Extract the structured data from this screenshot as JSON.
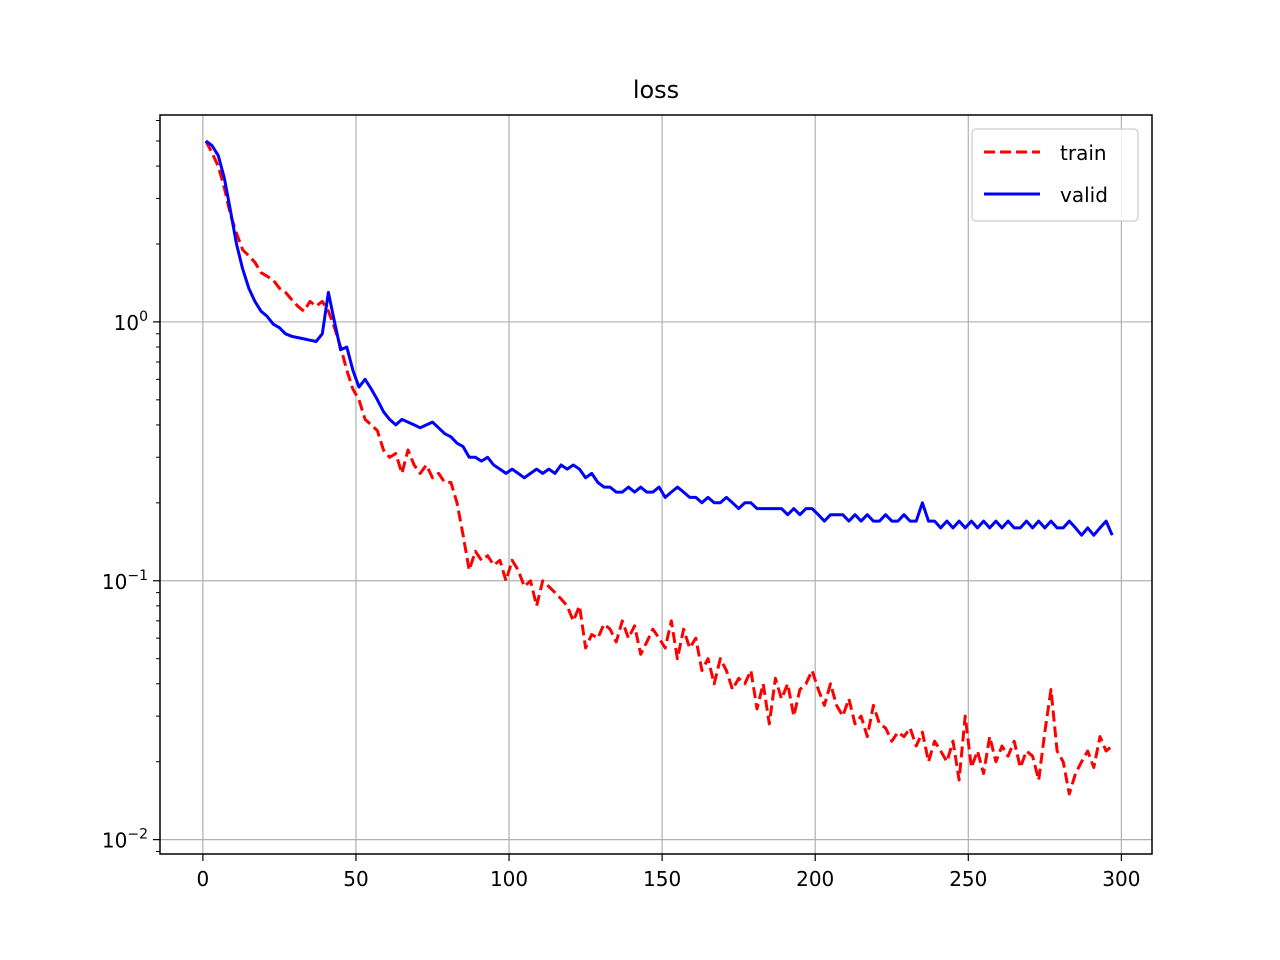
{
  "chart_data": {
    "type": "line",
    "title": "loss",
    "xlabel": "",
    "ylabel": "",
    "yscale": "log",
    "xlim": [
      -14,
      310
    ],
    "ylim": [
      0.0088,
      6.3
    ],
    "grid": true,
    "legend_position": "top-right",
    "x_ticks": [
      {
        "value": 0,
        "label": "0"
      },
      {
        "value": 50,
        "label": "50"
      },
      {
        "value": 100,
        "label": "100"
      },
      {
        "value": 150,
        "label": "150"
      },
      {
        "value": 200,
        "label": "200"
      },
      {
        "value": 250,
        "label": "250"
      },
      {
        "value": 300,
        "label": "300"
      }
    ],
    "y_ticks": [
      {
        "value": 1,
        "base": "10",
        "exp": "0"
      },
      {
        "value": 0.1,
        "base": "10",
        "exp": "−1"
      },
      {
        "value": 0.01,
        "base": "10",
        "exp": "−2"
      }
    ],
    "series": [
      {
        "name": "train",
        "color": "#ff0000",
        "dash": true,
        "points": [
          [
            1,
            5.0
          ],
          [
            3,
            4.5
          ],
          [
            5,
            4.0
          ],
          [
            7,
            3.3
          ],
          [
            9,
            2.6
          ],
          [
            11,
            2.2
          ],
          [
            13,
            1.9
          ],
          [
            15,
            1.8
          ],
          [
            17,
            1.7
          ],
          [
            19,
            1.55
          ],
          [
            21,
            1.5
          ],
          [
            23,
            1.45
          ],
          [
            25,
            1.35
          ],
          [
            27,
            1.3
          ],
          [
            29,
            1.22
          ],
          [
            31,
            1.15
          ],
          [
            33,
            1.1
          ],
          [
            35,
            1.2
          ],
          [
            37,
            1.15
          ],
          [
            39,
            1.2
          ],
          [
            41,
            1.1
          ],
          [
            43,
            0.95
          ],
          [
            45,
            0.8
          ],
          [
            47,
            0.65
          ],
          [
            49,
            0.55
          ],
          [
            51,
            0.5
          ],
          [
            53,
            0.42
          ],
          [
            55,
            0.4
          ],
          [
            57,
            0.38
          ],
          [
            59,
            0.32
          ],
          [
            61,
            0.3
          ],
          [
            63,
            0.31
          ],
          [
            65,
            0.26
          ],
          [
            67,
            0.32
          ],
          [
            69,
            0.28
          ],
          [
            71,
            0.26
          ],
          [
            73,
            0.28
          ],
          [
            75,
            0.25
          ],
          [
            77,
            0.26
          ],
          [
            79,
            0.24
          ],
          [
            81,
            0.24
          ],
          [
            83,
            0.2
          ],
          [
            85,
            0.15
          ],
          [
            87,
            0.11
          ],
          [
            89,
            0.13
          ],
          [
            91,
            0.12
          ],
          [
            93,
            0.125
          ],
          [
            95,
            0.115
          ],
          [
            97,
            0.12
          ],
          [
            99,
            0.1
          ],
          [
            101,
            0.12
          ],
          [
            103,
            0.11
          ],
          [
            105,
            0.095
          ],
          [
            107,
            0.1
          ],
          [
            109,
            0.08
          ],
          [
            111,
            0.1
          ],
          [
            113,
            0.095
          ],
          [
            115,
            0.09
          ],
          [
            117,
            0.085
          ],
          [
            119,
            0.08
          ],
          [
            121,
            0.07
          ],
          [
            123,
            0.08
          ],
          [
            125,
            0.055
          ],
          [
            127,
            0.062
          ],
          [
            129,
            0.06
          ],
          [
            131,
            0.068
          ],
          [
            133,
            0.065
          ],
          [
            135,
            0.058
          ],
          [
            137,
            0.07
          ],
          [
            139,
            0.06
          ],
          [
            141,
            0.067
          ],
          [
            143,
            0.052
          ],
          [
            145,
            0.058
          ],
          [
            147,
            0.065
          ],
          [
            149,
            0.06
          ],
          [
            151,
            0.055
          ],
          [
            153,
            0.07
          ],
          [
            155,
            0.05
          ],
          [
            157,
            0.065
          ],
          [
            159,
            0.055
          ],
          [
            161,
            0.06
          ],
          [
            163,
            0.045
          ],
          [
            165,
            0.05
          ],
          [
            167,
            0.04
          ],
          [
            169,
            0.05
          ],
          [
            171,
            0.045
          ],
          [
            173,
            0.038
          ],
          [
            175,
            0.042
          ],
          [
            177,
            0.04
          ],
          [
            179,
            0.045
          ],
          [
            181,
            0.032
          ],
          [
            183,
            0.04
          ],
          [
            185,
            0.028
          ],
          [
            187,
            0.042
          ],
          [
            189,
            0.035
          ],
          [
            191,
            0.04
          ],
          [
            193,
            0.03
          ],
          [
            195,
            0.038
          ],
          [
            197,
            0.04
          ],
          [
            199,
            0.045
          ],
          [
            201,
            0.038
          ],
          [
            203,
            0.033
          ],
          [
            205,
            0.04
          ],
          [
            207,
            0.033
          ],
          [
            209,
            0.03
          ],
          [
            211,
            0.035
          ],
          [
            213,
            0.028
          ],
          [
            215,
            0.03
          ],
          [
            217,
            0.025
          ],
          [
            219,
            0.033
          ],
          [
            221,
            0.028
          ],
          [
            223,
            0.027
          ],
          [
            225,
            0.024
          ],
          [
            227,
            0.026
          ],
          [
            229,
            0.025
          ],
          [
            231,
            0.027
          ],
          [
            233,
            0.023
          ],
          [
            235,
            0.026
          ],
          [
            237,
            0.02
          ],
          [
            239,
            0.024
          ],
          [
            241,
            0.022
          ],
          [
            243,
            0.02
          ],
          [
            245,
            0.024
          ],
          [
            247,
            0.017
          ],
          [
            249,
            0.03
          ],
          [
            251,
            0.019
          ],
          [
            253,
            0.022
          ],
          [
            255,
            0.018
          ],
          [
            257,
            0.025
          ],
          [
            259,
            0.02
          ],
          [
            261,
            0.023
          ],
          [
            263,
            0.021
          ],
          [
            265,
            0.024
          ],
          [
            267,
            0.019
          ],
          [
            269,
            0.022
          ],
          [
            271,
            0.021
          ],
          [
            273,
            0.017
          ],
          [
            275,
            0.026
          ],
          [
            277,
            0.038
          ],
          [
            279,
            0.022
          ],
          [
            281,
            0.02
          ],
          [
            283,
            0.015
          ],
          [
            285,
            0.018
          ],
          [
            287,
            0.02
          ],
          [
            289,
            0.022
          ],
          [
            291,
            0.019
          ],
          [
            293,
            0.025
          ],
          [
            295,
            0.022
          ],
          [
            297,
            0.023
          ]
        ]
      },
      {
        "name": "valid",
        "color": "#0000ff",
        "dash": false,
        "points": [
          [
            1,
            5.0
          ],
          [
            3,
            4.8
          ],
          [
            5,
            4.4
          ],
          [
            7,
            3.6
          ],
          [
            9,
            2.7
          ],
          [
            11,
            2.0
          ],
          [
            13,
            1.6
          ],
          [
            15,
            1.35
          ],
          [
            17,
            1.2
          ],
          [
            19,
            1.1
          ],
          [
            21,
            1.05
          ],
          [
            23,
            0.98
          ],
          [
            25,
            0.95
          ],
          [
            27,
            0.9
          ],
          [
            29,
            0.88
          ],
          [
            31,
            0.87
          ],
          [
            33,
            0.86
          ],
          [
            35,
            0.85
          ],
          [
            37,
            0.84
          ],
          [
            39,
            0.9
          ],
          [
            41,
            1.3
          ],
          [
            43,
            1.0
          ],
          [
            45,
            0.78
          ],
          [
            47,
            0.8
          ],
          [
            49,
            0.65
          ],
          [
            51,
            0.56
          ],
          [
            53,
            0.6
          ],
          [
            55,
            0.55
          ],
          [
            57,
            0.5
          ],
          [
            59,
            0.45
          ],
          [
            61,
            0.42
          ],
          [
            63,
            0.4
          ],
          [
            65,
            0.42
          ],
          [
            67,
            0.41
          ],
          [
            69,
            0.4
          ],
          [
            71,
            0.39
          ],
          [
            73,
            0.4
          ],
          [
            75,
            0.41
          ],
          [
            77,
            0.39
          ],
          [
            79,
            0.37
          ],
          [
            81,
            0.36
          ],
          [
            83,
            0.34
          ],
          [
            85,
            0.33
          ],
          [
            87,
            0.3
          ],
          [
            89,
            0.3
          ],
          [
            91,
            0.29
          ],
          [
            93,
            0.3
          ],
          [
            95,
            0.28
          ],
          [
            97,
            0.27
          ],
          [
            99,
            0.26
          ],
          [
            101,
            0.27
          ],
          [
            103,
            0.26
          ],
          [
            105,
            0.25
          ],
          [
            107,
            0.26
          ],
          [
            109,
            0.27
          ],
          [
            111,
            0.26
          ],
          [
            113,
            0.27
          ],
          [
            115,
            0.26
          ],
          [
            117,
            0.28
          ],
          [
            119,
            0.27
          ],
          [
            121,
            0.28
          ],
          [
            123,
            0.27
          ],
          [
            125,
            0.25
          ],
          [
            127,
            0.26
          ],
          [
            129,
            0.24
          ],
          [
            131,
            0.23
          ],
          [
            133,
            0.23
          ],
          [
            135,
            0.22
          ],
          [
            137,
            0.22
          ],
          [
            139,
            0.23
          ],
          [
            141,
            0.22
          ],
          [
            143,
            0.23
          ],
          [
            145,
            0.22
          ],
          [
            147,
            0.22
          ],
          [
            149,
            0.23
          ],
          [
            151,
            0.21
          ],
          [
            153,
            0.22
          ],
          [
            155,
            0.23
          ],
          [
            157,
            0.22
          ],
          [
            159,
            0.21
          ],
          [
            161,
            0.21
          ],
          [
            163,
            0.2
          ],
          [
            165,
            0.21
          ],
          [
            167,
            0.2
          ],
          [
            169,
            0.2
          ],
          [
            171,
            0.21
          ],
          [
            173,
            0.2
          ],
          [
            175,
            0.19
          ],
          [
            177,
            0.2
          ],
          [
            179,
            0.2
          ],
          [
            181,
            0.19
          ],
          [
            183,
            0.19
          ],
          [
            185,
            0.19
          ],
          [
            187,
            0.19
          ],
          [
            189,
            0.19
          ],
          [
            191,
            0.18
          ],
          [
            193,
            0.19
          ],
          [
            195,
            0.18
          ],
          [
            197,
            0.19
          ],
          [
            199,
            0.19
          ],
          [
            201,
            0.18
          ],
          [
            203,
            0.17
          ],
          [
            205,
            0.18
          ],
          [
            207,
            0.18
          ],
          [
            209,
            0.18
          ],
          [
            211,
            0.17
          ],
          [
            213,
            0.18
          ],
          [
            215,
            0.17
          ],
          [
            217,
            0.18
          ],
          [
            219,
            0.17
          ],
          [
            221,
            0.17
          ],
          [
            223,
            0.18
          ],
          [
            225,
            0.17
          ],
          [
            227,
            0.17
          ],
          [
            229,
            0.18
          ],
          [
            231,
            0.17
          ],
          [
            233,
            0.17
          ],
          [
            235,
            0.2
          ],
          [
            237,
            0.17
          ],
          [
            239,
            0.17
          ],
          [
            241,
            0.16
          ],
          [
            243,
            0.17
          ],
          [
            245,
            0.16
          ],
          [
            247,
            0.17
          ],
          [
            249,
            0.16
          ],
          [
            251,
            0.17
          ],
          [
            253,
            0.16
          ],
          [
            255,
            0.17
          ],
          [
            257,
            0.16
          ],
          [
            259,
            0.17
          ],
          [
            261,
            0.16
          ],
          [
            263,
            0.17
          ],
          [
            265,
            0.16
          ],
          [
            267,
            0.16
          ],
          [
            269,
            0.17
          ],
          [
            271,
            0.16
          ],
          [
            273,
            0.17
          ],
          [
            275,
            0.16
          ],
          [
            277,
            0.17
          ],
          [
            279,
            0.16
          ],
          [
            281,
            0.16
          ],
          [
            283,
            0.17
          ],
          [
            285,
            0.16
          ],
          [
            287,
            0.15
          ],
          [
            289,
            0.16
          ],
          [
            291,
            0.15
          ],
          [
            293,
            0.16
          ],
          [
            295,
            0.17
          ],
          [
            297,
            0.15
          ]
        ]
      }
    ]
  }
}
